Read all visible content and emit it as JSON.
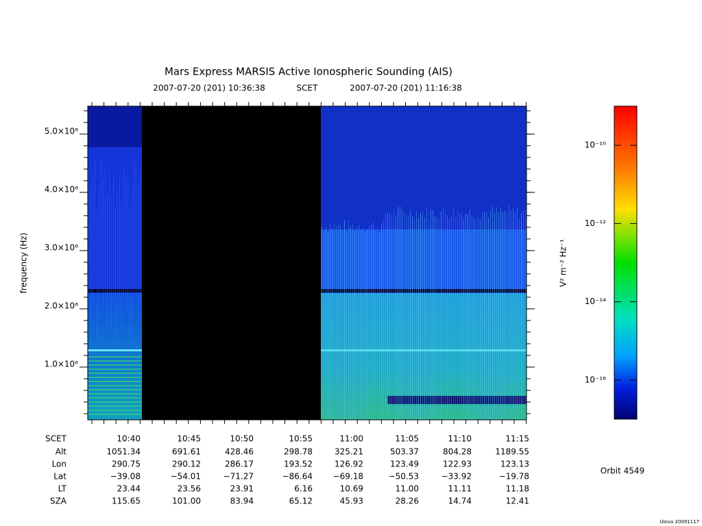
{
  "chart_data": {
    "type": "spectrogram",
    "title": "Mars Express MARSIS Active Ionospheric Sounding (AIS)",
    "start_time": "2007-07-20 (201) 10:36:38",
    "time_system": "SCET",
    "end_time": "2007-07-20 (201) 11:16:38",
    "y_label": "frequency (Hz)",
    "ylim": [
      94000,
      5480000
    ],
    "yticks": [
      {
        "value": 1000000,
        "label": "1.0×10⁶"
      },
      {
        "value": 2000000,
        "label": "2.0×10⁶"
      },
      {
        "value": 3000000,
        "label": "3.0×10⁶"
      },
      {
        "value": 4000000,
        "label": "4.0×10⁶"
      },
      {
        "value": 5000000,
        "label": "5.0×10⁶"
      }
    ],
    "colorbar": {
      "label": "V² m⁻² Hz⁻¹",
      "log": true,
      "ylim": [
        1e-17,
        1e-09
      ],
      "ticks": [
        {
          "value": 1e-10,
          "label": "10⁻¹⁰"
        },
        {
          "value": 1e-12,
          "label": "10⁻¹²"
        },
        {
          "value": 1e-14,
          "label": "10⁻¹⁴"
        },
        {
          "value": 1e-16,
          "label": "10⁻¹⁶"
        }
      ]
    },
    "ephemeris": [
      {
        "label": "SCET",
        "values": [
          "10:40",
          "10:45",
          "10:50",
          "10:55",
          "11:00",
          "11:05",
          "11:10",
          "11:15"
        ]
      },
      {
        "label": "Alt",
        "values": [
          "1051.34",
          "691.61",
          "428.46",
          "298.78",
          "325.21",
          "503.37",
          "804.28",
          "1189.55"
        ]
      },
      {
        "label": "Lon",
        "values": [
          "290.75",
          "290.12",
          "286.17",
          "193.52",
          "126.92",
          "123.49",
          "122.93",
          "123.13"
        ]
      },
      {
        "label": "Lat",
        "values": [
          "−39.08",
          "−54.01",
          "−71.27",
          "−86.64",
          "−69.18",
          "−50.53",
          "−33.92",
          "−19.78"
        ]
      },
      {
        "label": "LT",
        "values": [
          "23.44",
          "23.56",
          "23.91",
          "6.16",
          "10.69",
          "11.00",
          "11.11",
          "11.18"
        ]
      },
      {
        "label": "SZA",
        "values": [
          "115.65",
          "101.00",
          "83.94",
          "65.12",
          "45.93",
          "28.26",
          "14.74",
          "12.41"
        ]
      }
    ],
    "orbit": "Orbit 4549",
    "credit": "Ulova 20091117"
  }
}
